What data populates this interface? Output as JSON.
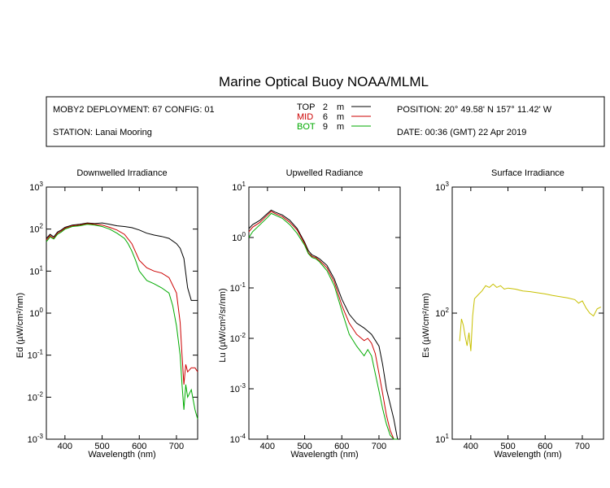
{
  "title": "Marine Optical Buoy NOAA/MLML",
  "header": {
    "deployment": "MOBY2 DEPLOYMENT: 67 CONFIG: 01",
    "station": "STATION: Lanai Mooring",
    "position": "POSITION: 20° 49.58' N   157° 11.42' W",
    "date": "DATE: 00:36 (GMT) 22 Apr 2019",
    "sensors": [
      {
        "name": "TOP",
        "depth": "2",
        "unit": "m",
        "color": "#000000"
      },
      {
        "name": "MID",
        "depth": "6",
        "unit": "m",
        "color": "#cc0000"
      },
      {
        "name": "BOT",
        "depth": "9",
        "unit": "m",
        "color": "#00aa00"
      }
    ]
  },
  "chart_data": [
    {
      "type": "line",
      "title": "Downwelled Irradiance",
      "xlabel": "Wavelength (nm)",
      "ylabel": "Ed (µW/cm²/nm)",
      "yscale": "log",
      "xlim": [
        350,
        757
      ],
      "ylim_exp": [
        -3,
        3
      ],
      "xticks": [
        400,
        500,
        600,
        700
      ],
      "series": [
        {
          "name": "TOP",
          "color": "#000000",
          "x": [
            350,
            360,
            370,
            380,
            390,
            400,
            420,
            440,
            460,
            480,
            500,
            520,
            540,
            560,
            580,
            600,
            620,
            640,
            660,
            680,
            700,
            710,
            720,
            730,
            740,
            750,
            757
          ],
          "y": [
            60,
            75,
            65,
            85,
            95,
            110,
            125,
            130,
            140,
            135,
            140,
            130,
            120,
            115,
            108,
            95,
            80,
            72,
            67,
            60,
            45,
            35,
            20,
            4,
            2,
            2,
            2
          ]
        },
        {
          "name": "MID",
          "color": "#cc0000",
          "x": [
            350,
            360,
            370,
            380,
            390,
            400,
            420,
            440,
            460,
            480,
            500,
            520,
            540,
            560,
            580,
            600,
            620,
            640,
            660,
            680,
            700,
            710,
            715,
            720,
            725,
            730,
            740,
            750,
            757
          ],
          "y": [
            55,
            70,
            60,
            80,
            90,
            105,
            120,
            125,
            135,
            130,
            125,
            110,
            95,
            75,
            45,
            18,
            12,
            10,
            9,
            7,
            3,
            0.6,
            0.1,
            0.02,
            0.06,
            0.04,
            0.05,
            0.05,
            0.04
          ]
        },
        {
          "name": "BOT",
          "color": "#00aa00",
          "x": [
            350,
            360,
            370,
            380,
            390,
            400,
            420,
            440,
            460,
            480,
            500,
            520,
            540,
            560,
            570,
            580,
            590,
            600,
            620,
            640,
            660,
            680,
            690,
            700,
            710,
            715,
            720,
            725,
            730,
            740,
            750,
            757
          ],
          "y": [
            50,
            65,
            58,
            75,
            85,
            100,
            115,
            120,
            130,
            125,
            115,
            100,
            80,
            60,
            45,
            30,
            18,
            10,
            6,
            5,
            4,
            3,
            1.5,
            0.5,
            0.1,
            0.02,
            0.005,
            0.02,
            0.01,
            0.015,
            0.005,
            0.003
          ]
        }
      ]
    },
    {
      "type": "line",
      "title": "Upwelled Radiance",
      "xlabel": "Wavelength (nm)",
      "ylabel": "Lu (µW/cm²/sr/nm)",
      "yscale": "log",
      "xlim": [
        350,
        757
      ],
      "ylim_exp": [
        -4,
        1
      ],
      "xticks": [
        400,
        500,
        600,
        700
      ],
      "series": [
        {
          "name": "TOP",
          "color": "#000000",
          "x": [
            350,
            360,
            380,
            400,
            410,
            420,
            440,
            460,
            480,
            500,
            510,
            520,
            530,
            540,
            560,
            580,
            600,
            620,
            640,
            660,
            680,
            700,
            710,
            720,
            730,
            740,
            750
          ],
          "y": [
            1.5,
            1.8,
            2.2,
            3,
            3.5,
            3.2,
            2.8,
            2.2,
            1.5,
            0.8,
            0.55,
            0.45,
            0.42,
            0.38,
            0.28,
            0.15,
            0.06,
            0.03,
            0.02,
            0.016,
            0.012,
            0.007,
            0.003,
            0.001,
            0.0005,
            0.00025,
            0.0001
          ]
        },
        {
          "name": "MID",
          "color": "#cc0000",
          "x": [
            350,
            360,
            380,
            400,
            410,
            420,
            440,
            460,
            480,
            500,
            510,
            520,
            530,
            540,
            560,
            580,
            600,
            620,
            640,
            660,
            670,
            680,
            690,
            700,
            710,
            720,
            730,
            740,
            750
          ],
          "y": [
            1.3,
            1.6,
            2,
            2.8,
            3.3,
            3,
            2.6,
            2,
            1.4,
            0.75,
            0.5,
            0.42,
            0.4,
            0.35,
            0.25,
            0.13,
            0.045,
            0.02,
            0.012,
            0.009,
            0.01,
            0.008,
            0.005,
            0.002,
            0.0008,
            0.0003,
            0.00015,
            0.0001,
            0.0001
          ]
        },
        {
          "name": "BOT",
          "color": "#00aa00",
          "x": [
            350,
            360,
            380,
            400,
            410,
            420,
            440,
            460,
            480,
            500,
            510,
            520,
            530,
            540,
            560,
            580,
            600,
            620,
            640,
            660,
            670,
            680,
            690,
            700,
            710,
            720,
            730,
            740,
            750
          ],
          "y": [
            1,
            1.3,
            1.8,
            2.5,
            3,
            2.8,
            2.4,
            1.8,
            1.2,
            0.7,
            0.48,
            0.4,
            0.38,
            0.33,
            0.22,
            0.11,
            0.035,
            0.012,
            0.007,
            0.0045,
            0.006,
            0.0045,
            0.002,
            0.0009,
            0.0004,
            0.0002,
            0.00012,
            0.0001,
            0.0001
          ]
        }
      ]
    },
    {
      "type": "line",
      "title": "Surface Irradiance",
      "xlabel": "Wavelength (nm)",
      "ylabel": "Es (µW/cm²/nm)",
      "yscale": "log",
      "xlim": [
        350,
        757
      ],
      "ylim_exp": [
        1,
        3
      ],
      "xticks": [
        400,
        500,
        600,
        700
      ],
      "series": [
        {
          "name": "Es",
          "color": "#c8c000",
          "x": [
            370,
            375,
            380,
            385,
            390,
            395,
            400,
            405,
            410,
            420,
            430,
            440,
            450,
            460,
            470,
            480,
            490,
            500,
            520,
            540,
            560,
            580,
            600,
            620,
            640,
            660,
            680,
            690,
            700,
            710,
            720,
            730,
            740,
            750
          ],
          "y": [
            60,
            90,
            80,
            65,
            55,
            70,
            50,
            95,
            130,
            140,
            150,
            165,
            160,
            170,
            160,
            165,
            155,
            158,
            155,
            150,
            148,
            145,
            142,
            138,
            135,
            132,
            128,
            120,
            125,
            110,
            100,
            95,
            108,
            112
          ]
        }
      ]
    }
  ]
}
